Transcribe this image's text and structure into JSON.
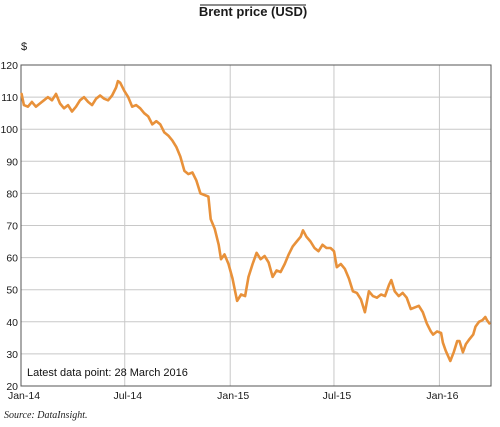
{
  "chart_data": {
    "type": "line",
    "title": "Brent price (USD)",
    "ylabel": "$",
    "xlabel": "",
    "ylim": [
      20,
      120
    ],
    "yticks": [
      20,
      30,
      40,
      50,
      60,
      70,
      80,
      90,
      100,
      110,
      120
    ],
    "xlim": [
      "2014-01-01",
      "2016-03-31"
    ],
    "xticks": [
      {
        "date": "2014-01-01",
        "label": "Jan-14"
      },
      {
        "date": "2014-07-01",
        "label": "Jul-14"
      },
      {
        "date": "2015-01-01",
        "label": "Jan-15"
      },
      {
        "date": "2015-07-01",
        "label": "Jul-15"
      },
      {
        "date": "2016-01-01",
        "label": "Jan-16"
      }
    ],
    "grid": true,
    "annotation": "Latest data point: 28 March 2016",
    "series": [
      {
        "color": "#e8913a",
        "points": [
          [
            "2014-01-02",
            111
          ],
          [
            "2014-01-06",
            107.5
          ],
          [
            "2014-01-13",
            107
          ],
          [
            "2014-01-20",
            108.5
          ],
          [
            "2014-01-27",
            107
          ],
          [
            "2014-02-03",
            108
          ],
          [
            "2014-02-10",
            109
          ],
          [
            "2014-02-17",
            110
          ],
          [
            "2014-02-24",
            109
          ],
          [
            "2014-03-03",
            111
          ],
          [
            "2014-03-10",
            108
          ],
          [
            "2014-03-17",
            106.5
          ],
          [
            "2014-03-24",
            107.5
          ],
          [
            "2014-03-31",
            105.5
          ],
          [
            "2014-04-07",
            107
          ],
          [
            "2014-04-14",
            109
          ],
          [
            "2014-04-21",
            110
          ],
          [
            "2014-04-28",
            108.5
          ],
          [
            "2014-05-05",
            107.5
          ],
          [
            "2014-05-12",
            109.5
          ],
          [
            "2014-05-19",
            110.5
          ],
          [
            "2014-05-26",
            109.5
          ],
          [
            "2014-06-02",
            109
          ],
          [
            "2014-06-09",
            110.5
          ],
          [
            "2014-06-16",
            113
          ],
          [
            "2014-06-19",
            115
          ],
          [
            "2014-06-23",
            114.5
          ],
          [
            "2014-06-30",
            112
          ],
          [
            "2014-07-07",
            110
          ],
          [
            "2014-07-14",
            107
          ],
          [
            "2014-07-21",
            107.5
          ],
          [
            "2014-07-28",
            106.5
          ],
          [
            "2014-08-04",
            105
          ],
          [
            "2014-08-11",
            104
          ],
          [
            "2014-08-18",
            101.5
          ],
          [
            "2014-08-25",
            102.5
          ],
          [
            "2014-09-01",
            101.5
          ],
          [
            "2014-09-08",
            99
          ],
          [
            "2014-09-15",
            98
          ],
          [
            "2014-09-22",
            96.5
          ],
          [
            "2014-09-29",
            94.5
          ],
          [
            "2014-10-06",
            91.5
          ],
          [
            "2014-10-13",
            87
          ],
          [
            "2014-10-20",
            86
          ],
          [
            "2014-10-27",
            86.5
          ],
          [
            "2014-11-03",
            84
          ],
          [
            "2014-11-10",
            80
          ],
          [
            "2014-11-17",
            79.5
          ],
          [
            "2014-11-24",
            79
          ],
          [
            "2014-11-28",
            72
          ],
          [
            "2014-12-05",
            69
          ],
          [
            "2014-12-12",
            64
          ],
          [
            "2014-12-16",
            59.5
          ],
          [
            "2014-12-22",
            61
          ],
          [
            "2014-12-29",
            58
          ],
          [
            "2015-01-05",
            53.5
          ],
          [
            "2015-01-09",
            50
          ],
          [
            "2015-01-13",
            46.5
          ],
          [
            "2015-01-20",
            48.5
          ],
          [
            "2015-01-27",
            48
          ],
          [
            "2015-02-02",
            54
          ],
          [
            "2015-02-09",
            58
          ],
          [
            "2015-02-16",
            61.5
          ],
          [
            "2015-02-23",
            59.5
          ],
          [
            "2015-03-02",
            60.5
          ],
          [
            "2015-03-09",
            58.5
          ],
          [
            "2015-03-16",
            54
          ],
          [
            "2015-03-23",
            56
          ],
          [
            "2015-03-30",
            55.5
          ],
          [
            "2015-04-06",
            58
          ],
          [
            "2015-04-13",
            61
          ],
          [
            "2015-04-20",
            63.5
          ],
          [
            "2015-04-27",
            65
          ],
          [
            "2015-05-04",
            66.5
          ],
          [
            "2015-05-08",
            68.5
          ],
          [
            "2015-05-14",
            66.5
          ],
          [
            "2015-05-21",
            65
          ],
          [
            "2015-05-28",
            63
          ],
          [
            "2015-06-04",
            62
          ],
          [
            "2015-06-11",
            64
          ],
          [
            "2015-06-18",
            63
          ],
          [
            "2015-06-25",
            63
          ],
          [
            "2015-07-01",
            62
          ],
          [
            "2015-07-06",
            57
          ],
          [
            "2015-07-13",
            58
          ],
          [
            "2015-07-20",
            56.5
          ],
          [
            "2015-07-27",
            53.5
          ],
          [
            "2015-08-03",
            49.5
          ],
          [
            "2015-08-10",
            49
          ],
          [
            "2015-08-17",
            47
          ],
          [
            "2015-08-24",
            43
          ],
          [
            "2015-08-31",
            49.5
          ],
          [
            "2015-09-07",
            48
          ],
          [
            "2015-09-14",
            47.5
          ],
          [
            "2015-09-21",
            48.5
          ],
          [
            "2015-09-28",
            48
          ],
          [
            "2015-10-05",
            51.5
          ],
          [
            "2015-10-09",
            53
          ],
          [
            "2015-10-15",
            49.5
          ],
          [
            "2015-10-22",
            48
          ],
          [
            "2015-10-29",
            49
          ],
          [
            "2015-11-05",
            47.5
          ],
          [
            "2015-11-12",
            44
          ],
          [
            "2015-11-19",
            44.5
          ],
          [
            "2015-11-26",
            45
          ],
          [
            "2015-12-03",
            43
          ],
          [
            "2015-12-10",
            39.5
          ],
          [
            "2015-12-17",
            37
          ],
          [
            "2015-12-21",
            36
          ],
          [
            "2015-12-28",
            37
          ],
          [
            "2016-01-04",
            36.5
          ],
          [
            "2016-01-07",
            33.5
          ],
          [
            "2016-01-12",
            31
          ],
          [
            "2016-01-20",
            27.8
          ],
          [
            "2016-01-26",
            30.5
          ],
          [
            "2016-02-01",
            34
          ],
          [
            "2016-02-05",
            34
          ],
          [
            "2016-02-11",
            30.5
          ],
          [
            "2016-02-16",
            33
          ],
          [
            "2016-02-22",
            34.5
          ],
          [
            "2016-02-29",
            36
          ],
          [
            "2016-03-04",
            38.5
          ],
          [
            "2016-03-10",
            40
          ],
          [
            "2016-03-16",
            40.5
          ],
          [
            "2016-03-21",
            41.5
          ],
          [
            "2016-03-24",
            40.5
          ],
          [
            "2016-03-28",
            39.5
          ]
        ]
      }
    ]
  },
  "source_label": "Source: DataInsight."
}
